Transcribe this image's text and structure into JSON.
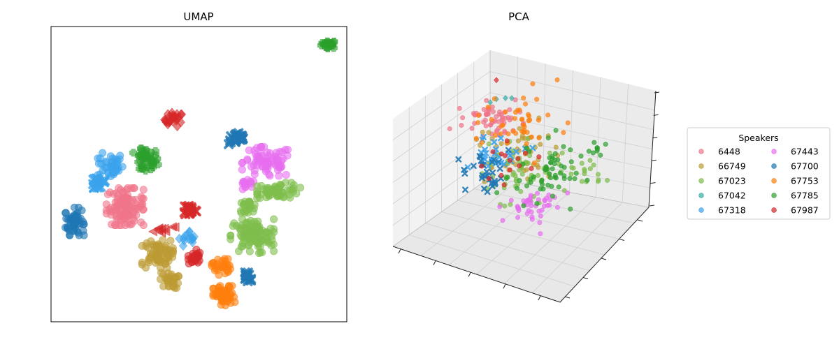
{
  "chart_data": [
    {
      "type": "scatter",
      "title": "UMAP",
      "xlabel": "",
      "ylabel": "",
      "ticks": "none",
      "xlim": [
        0,
        100
      ],
      "ylim": [
        0,
        100
      ],
      "clusters": [
        {
          "series": "67785",
          "marker": "plus",
          "cx": 94,
          "cy": 94,
          "rx": 2.5,
          "ry": 1.3,
          "n": 25
        },
        {
          "series": "67987",
          "marker": "diamond",
          "cx": 41.5,
          "cy": 68.5,
          "rx": 3,
          "ry": 2.2,
          "n": 25
        },
        {
          "series": "67785",
          "marker": "plus",
          "cx": 32,
          "cy": 54.5,
          "rx": 4,
          "ry": 4,
          "n": 45
        },
        {
          "series": "67318",
          "marker": "circle",
          "cx": 20,
          "cy": 53,
          "rx": 4,
          "ry": 4,
          "n": 40
        },
        {
          "series": "67318",
          "marker": "x",
          "cx": 16,
          "cy": 47,
          "rx": 3,
          "ry": 2.5,
          "n": 20
        },
        {
          "series": "67700",
          "marker": "circle",
          "cx": 8,
          "cy": 34,
          "rx": 3,
          "ry": 4.5,
          "n": 55
        },
        {
          "series": "6448",
          "marker": "circle",
          "cx": 25,
          "cy": 39,
          "rx": 6,
          "ry": 6,
          "n": 110
        },
        {
          "series": "67700",
          "marker": "x",
          "cx": 63,
          "cy": 62,
          "rx": 2.8,
          "ry": 1.8,
          "n": 30
        },
        {
          "series": "67443",
          "marker": "circle",
          "cx": 73,
          "cy": 54,
          "rx": 8,
          "ry": 5,
          "n": 75
        },
        {
          "series": "67443",
          "marker": "circle",
          "cx": 66,
          "cy": 46,
          "rx": 3,
          "ry": 2,
          "n": 15
        },
        {
          "series": "67023",
          "marker": "circle",
          "cx": 77,
          "cy": 44.5,
          "rx": 7,
          "ry": 2.5,
          "n": 60
        },
        {
          "series": "67023",
          "marker": "circle",
          "cx": 66.5,
          "cy": 39,
          "rx": 3,
          "ry": 2,
          "n": 25
        },
        {
          "series": "67023",
          "marker": "circle",
          "cx": 68,
          "cy": 29,
          "rx": 7,
          "ry": 5.5,
          "n": 110
        },
        {
          "series": "67987",
          "marker": "x",
          "cx": 47,
          "cy": 38,
          "rx": 2,
          "ry": 1.8,
          "n": 20
        },
        {
          "series": "67987",
          "marker": "triangle-left",
          "cx": 38,
          "cy": 31.5,
          "rx": 5,
          "ry": 1.3,
          "n": 10
        },
        {
          "series": "67318",
          "marker": "diamond",
          "cx": 47,
          "cy": 28,
          "rx": 3.5,
          "ry": 2.5,
          "n": 15
        },
        {
          "series": "67987",
          "marker": "circle",
          "cx": 48.5,
          "cy": 22,
          "rx": 2,
          "ry": 2.5,
          "n": 25
        },
        {
          "series": "66749",
          "marker": "circle",
          "cx": 36,
          "cy": 23,
          "rx": 5,
          "ry": 4.5,
          "n": 70
        },
        {
          "series": "66749",
          "marker": "circle",
          "cx": 40,
          "cy": 14,
          "rx": 3,
          "ry": 2.5,
          "n": 30
        },
        {
          "series": "67753",
          "marker": "circle",
          "cx": 57.5,
          "cy": 19,
          "rx": 3,
          "ry": 3,
          "n": 30
        },
        {
          "series": "67753",
          "marker": "circle",
          "cx": 58.5,
          "cy": 8.5,
          "rx": 3.5,
          "ry": 3.5,
          "n": 60
        },
        {
          "series": "67700",
          "marker": "x",
          "cx": 66.5,
          "cy": 15.5,
          "rx": 1.5,
          "ry": 2,
          "n": 18
        }
      ]
    },
    {
      "type": "scatter3d",
      "title": "PCA",
      "xlabel": "",
      "ylabel": "",
      "zlabel": "",
      "tick_labels": "none",
      "clusters": [
        {
          "series": "6448",
          "marker": "circle",
          "x": 0.22,
          "y": 0.35,
          "z": 0.72,
          "spread": 0.13,
          "n": 60
        },
        {
          "series": "66749",
          "marker": "circle",
          "x": 0.42,
          "y": 0.45,
          "z": 0.55,
          "spread": 0.2,
          "n": 50
        },
        {
          "series": "67023",
          "marker": "circle",
          "x": 0.52,
          "y": 0.5,
          "z": 0.48,
          "spread": 0.18,
          "n": 60
        },
        {
          "series": "67023",
          "marker": "circle",
          "x": 0.8,
          "y": 0.38,
          "z": 0.5,
          "spread": 0.1,
          "n": 16
        },
        {
          "series": "67042",
          "marker": "diamond",
          "x": 0.26,
          "y": 0.32,
          "z": 0.86,
          "spread": 0.05,
          "n": 4
        },
        {
          "series": "67318",
          "marker": "x",
          "x": 0.3,
          "y": 0.42,
          "z": 0.52,
          "spread": 0.12,
          "n": 25
        },
        {
          "series": "67443",
          "marker": "circle",
          "x": 0.6,
          "y": 0.62,
          "z": 0.3,
          "spread": 0.13,
          "n": 45
        },
        {
          "series": "67700",
          "marker": "x",
          "x": 0.28,
          "y": 0.55,
          "z": 0.42,
          "spread": 0.16,
          "n": 30
        },
        {
          "series": "67753",
          "marker": "circle",
          "x": 0.42,
          "y": 0.38,
          "z": 0.78,
          "spread": 0.22,
          "n": 45
        },
        {
          "series": "67785",
          "marker": "circle",
          "x": 0.62,
          "y": 0.45,
          "z": 0.48,
          "spread": 0.18,
          "n": 60
        },
        {
          "series": "67785",
          "marker": "circle",
          "x": 0.85,
          "y": 0.3,
          "z": 0.65,
          "spread": 0.07,
          "n": 8
        },
        {
          "series": "67987",
          "marker": "circle",
          "x": 0.38,
          "y": 0.52,
          "z": 0.48,
          "spread": 0.15,
          "n": 15
        },
        {
          "series": "67987",
          "marker": "diamond",
          "x": 0.22,
          "y": 0.3,
          "z": 0.98,
          "spread": 0.02,
          "n": 1
        }
      ]
    }
  ],
  "legend": {
    "title": "Speakers",
    "placement": "center-right",
    "columns": 2,
    "entries": [
      {
        "label": "6448",
        "color": "#f0758a"
      },
      {
        "label": "66749",
        "color": "#bc9b33"
      },
      {
        "label": "67023",
        "color": "#7ebe4c"
      },
      {
        "label": "67042",
        "color": "#36ada4"
      },
      {
        "label": "67318",
        "color": "#3ba3ec"
      },
      {
        "label": "67443",
        "color": "#e76ef0"
      },
      {
        "label": "67700",
        "color": "#1f77b4"
      },
      {
        "label": "67753",
        "color": "#ff7f0e"
      },
      {
        "label": "67785",
        "color": "#2ca02c"
      },
      {
        "label": "67987",
        "color": "#d62728"
      }
    ]
  }
}
